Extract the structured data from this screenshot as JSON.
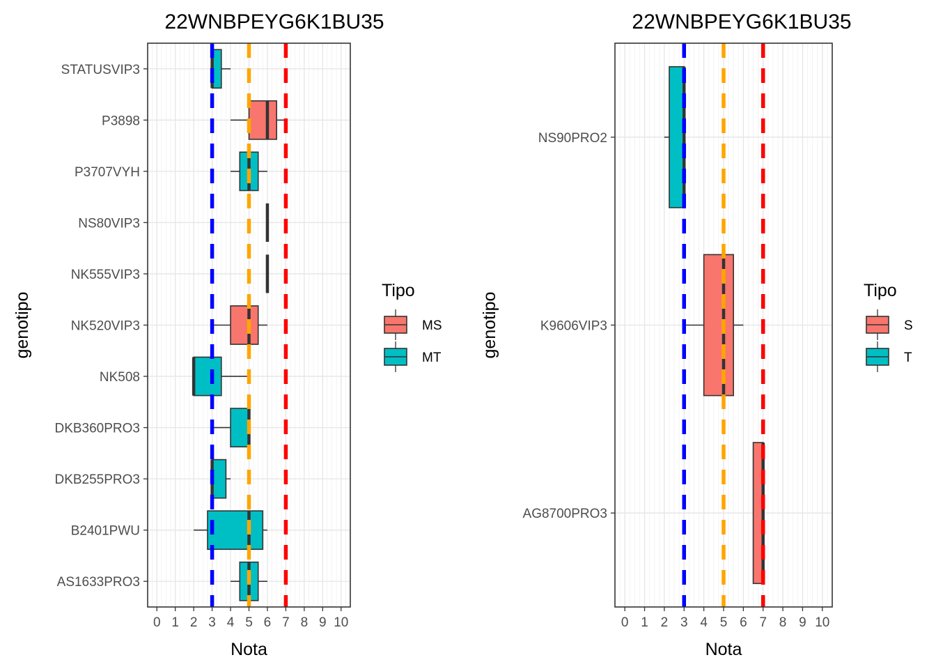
{
  "chart_data": [
    {
      "type": "boxplot",
      "orientation": "horizontal",
      "title": "22WNBPEYG6K1BU35",
      "xlabel": "Nota",
      "ylabel": "genotipo",
      "xlim": [
        -0.5,
        10.5
      ],
      "x_ticks": [
        "0",
        "1",
        "2",
        "3",
        "4",
        "5",
        "6",
        "7",
        "8",
        "9",
        "10"
      ],
      "grid": true,
      "reference_lines": [
        {
          "x": 3,
          "color": "#0000ff",
          "style": "dashed"
        },
        {
          "x": 5,
          "color": "#ffa500",
          "style": "dashed"
        },
        {
          "x": 7,
          "color": "#ff0000",
          "style": "dashed"
        }
      ],
      "legend": {
        "title": "Tipo",
        "placement": "right",
        "entries": [
          {
            "label": "MS",
            "color": "#f8766d"
          },
          {
            "label": "MT",
            "color": "#00bfc4"
          }
        ]
      },
      "categories": [
        "STATUSVIP3",
        "P3898",
        "P3707VYH",
        "NS80VIP3",
        "NK555VIP3",
        "NK520VIP3",
        "NK508",
        "DKB360PRO3",
        "DKB255PRO3",
        "B2401PWU",
        "AS1633PRO3"
      ],
      "boxes": [
        {
          "genotipo": "STATUSVIP3",
          "tipo": "MT",
          "min": 3,
          "q1": 3,
          "median": 3,
          "q3": 3.5,
          "max": 4
        },
        {
          "genotipo": "P3898",
          "tipo": "MS",
          "min": 4,
          "q1": 5,
          "median": 6,
          "q3": 6.5,
          "max": 7
        },
        {
          "genotipo": "P3707VYH",
          "tipo": "MT",
          "min": 4,
          "q1": 4.5,
          "median": 5,
          "q3": 5.5,
          "max": 6
        },
        {
          "genotipo": "NS80VIP3",
          "tipo": "MS",
          "min": 6,
          "q1": 6,
          "median": 6,
          "q3": 6,
          "max": 6
        },
        {
          "genotipo": "NK555VIP3",
          "tipo": "MS",
          "min": 6,
          "q1": 6,
          "median": 6,
          "q3": 6,
          "max": 6
        },
        {
          "genotipo": "NK520VIP3",
          "tipo": "MS",
          "min": 3,
          "q1": 4,
          "median": 5,
          "q3": 5.5,
          "max": 6
        },
        {
          "genotipo": "NK508",
          "tipo": "MT",
          "min": 2,
          "q1": 2,
          "median": 2,
          "q3": 3.5,
          "max": 5
        },
        {
          "genotipo": "DKB360PRO3",
          "tipo": "MT",
          "min": 3,
          "q1": 4,
          "median": 5,
          "q3": 5,
          "max": 5
        },
        {
          "genotipo": "DKB255PRO3",
          "tipo": "MT",
          "min": 3,
          "q1": 3,
          "median": 3,
          "q3": 3.75,
          "max": 4
        },
        {
          "genotipo": "B2401PWU",
          "tipo": "MT",
          "min": 2,
          "q1": 2.75,
          "median": 5,
          "q3": 5.75,
          "max": 6
        },
        {
          "genotipo": "AS1633PRO3",
          "tipo": "MT",
          "min": 4,
          "q1": 4.5,
          "median": 5,
          "q3": 5.5,
          "max": 6
        }
      ]
    },
    {
      "type": "boxplot",
      "orientation": "horizontal",
      "title": "22WNBPEYG6K1BU35",
      "xlabel": "Nota",
      "ylabel": "genotipo",
      "xlim": [
        -0.5,
        10.5
      ],
      "x_ticks": [
        "0",
        "1",
        "2",
        "3",
        "4",
        "5",
        "6",
        "7",
        "8",
        "9",
        "10"
      ],
      "grid": true,
      "reference_lines": [
        {
          "x": 3,
          "color": "#0000ff",
          "style": "dashed"
        },
        {
          "x": 5,
          "color": "#ffa500",
          "style": "dashed"
        },
        {
          "x": 7,
          "color": "#ff0000",
          "style": "dashed"
        }
      ],
      "legend": {
        "title": "Tipo",
        "placement": "right",
        "entries": [
          {
            "label": "S",
            "color": "#f8766d"
          },
          {
            "label": "T",
            "color": "#00bfc4"
          }
        ]
      },
      "categories": [
        "NS90PRO2",
        "K9606VIP3",
        "AG8700PRO3"
      ],
      "boxes": [
        {
          "genotipo": "NS90PRO2",
          "tipo": "T",
          "min": 2,
          "q1": 2.25,
          "median": 3,
          "q3": 3,
          "max": 3
        },
        {
          "genotipo": "K9606VIP3",
          "tipo": "S",
          "min": 3,
          "q1": 4,
          "median": 5,
          "q3": 5.5,
          "max": 6
        },
        {
          "genotipo": "AG8700PRO3",
          "tipo": "S",
          "min": 6.5,
          "q1": 6.5,
          "median": 7,
          "q3": 7,
          "max": 7
        }
      ]
    }
  ]
}
